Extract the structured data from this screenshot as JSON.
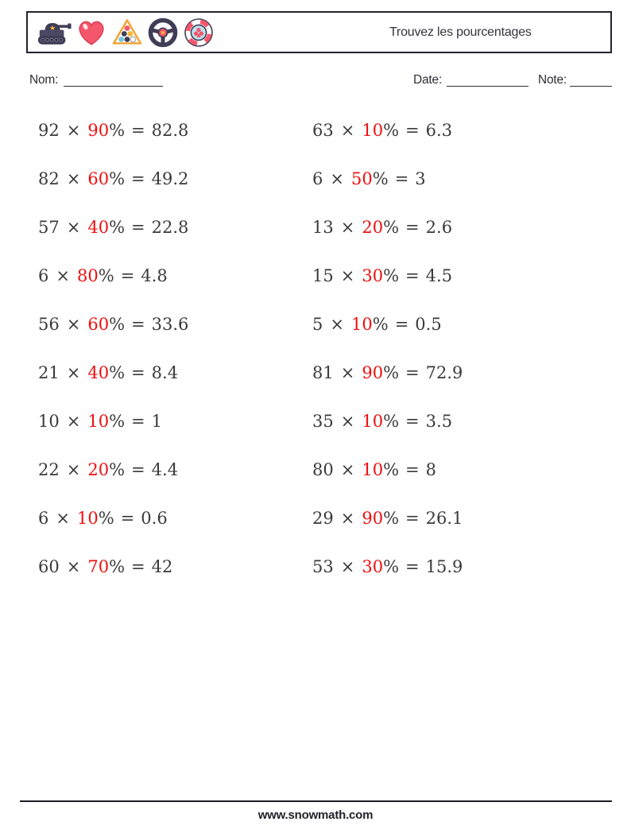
{
  "header": {
    "title": "Trouvez les pourcentages",
    "icons": [
      "tank-icon",
      "heart-icon",
      "billiards-rack-icon",
      "steering-wheel-icon",
      "poker-chip-icon"
    ]
  },
  "fields": {
    "name_label": "Nom:",
    "date_label": "Date:",
    "note_label": "Note:"
  },
  "problems": {
    "multiply_sign": "×",
    "percent_sign": "%",
    "equals_sign": "=",
    "left": [
      {
        "a": "92",
        "p": "90",
        "r": "82.8"
      },
      {
        "a": "82",
        "p": "60",
        "r": "49.2"
      },
      {
        "a": "57",
        "p": "40",
        "r": "22.8"
      },
      {
        "a": "6",
        "p": "80",
        "r": "4.8"
      },
      {
        "a": "56",
        "p": "60",
        "r": "33.6"
      },
      {
        "a": "21",
        "p": "40",
        "r": "8.4"
      },
      {
        "a": "10",
        "p": "10",
        "r": "1"
      },
      {
        "a": "22",
        "p": "20",
        "r": "4.4"
      },
      {
        "a": "6",
        "p": "10",
        "r": "0.6"
      },
      {
        "a": "60",
        "p": "70",
        "r": "42"
      }
    ],
    "right": [
      {
        "a": "63",
        "p": "10",
        "r": "6.3"
      },
      {
        "a": "6",
        "p": "50",
        "r": "3"
      },
      {
        "a": "13",
        "p": "20",
        "r": "2.6"
      },
      {
        "a": "15",
        "p": "30",
        "r": "4.5"
      },
      {
        "a": "5",
        "p": "10",
        "r": "0.5"
      },
      {
        "a": "81",
        "p": "90",
        "r": "72.9"
      },
      {
        "a": "35",
        "p": "10",
        "r": "3.5"
      },
      {
        "a": "80",
        "p": "10",
        "r": "8"
      },
      {
        "a": "29",
        "p": "90",
        "r": "26.1"
      },
      {
        "a": "53",
        "p": "30",
        "r": "15.9"
      }
    ]
  },
  "footer": {
    "website": "www.snowmath.com"
  },
  "colors": {
    "accent_red": "#ef0f0f",
    "text": "#3a3a3a",
    "icon_navy": "#3f3d56",
    "icon_pink": "#f4576b",
    "icon_yellow": "#f2b63a",
    "icon_orange": "#f2a53a",
    "icon_teal": "#74c7d6",
    "icon_lightblue": "#bce3ef"
  }
}
